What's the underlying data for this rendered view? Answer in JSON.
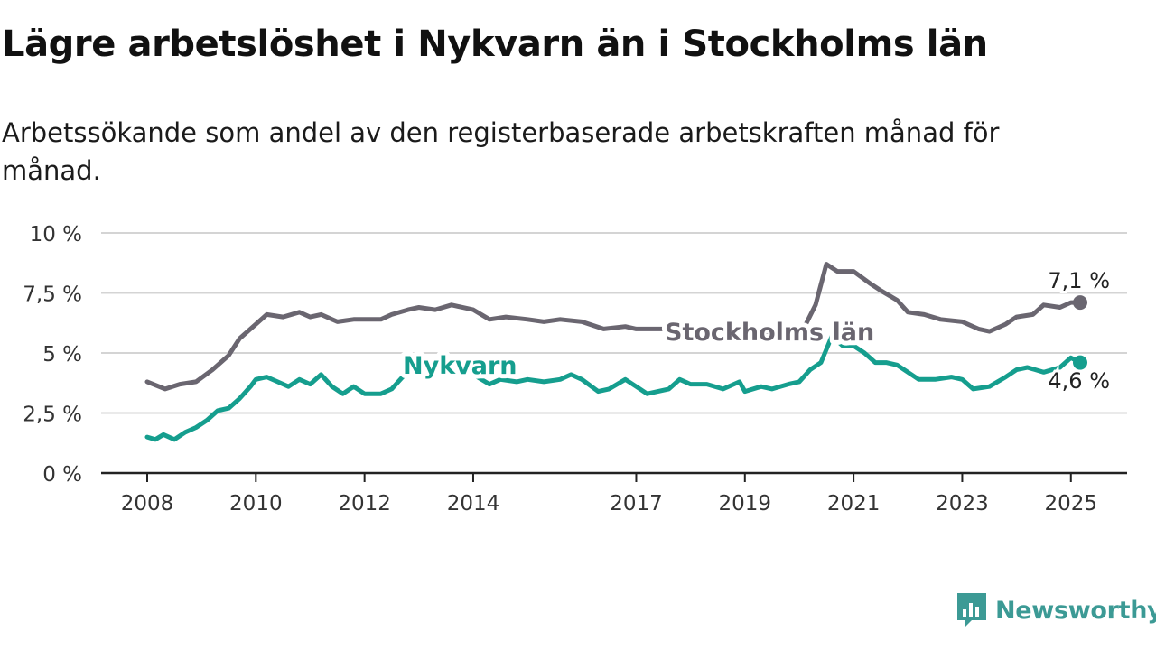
{
  "title": "Lägre arbetslöshet i Nykvarn än i Stockholms län",
  "subtitle": "Arbetssökande som andel av den registerbaserade arbetskraften månad för månad.",
  "brand": "Newsworthy",
  "colors": {
    "stockholm": "#6a6670",
    "nykvarn": "#159e8e",
    "grid": "#d4d4d4",
    "axis": "#222222",
    "brand": "#3c9a95"
  },
  "chart_data": {
    "type": "line",
    "ylim": [
      0,
      10
    ],
    "y_ticks": [
      0,
      2.5,
      5,
      7.5,
      10
    ],
    "y_tick_labels": [
      "0 %",
      "2,5 %",
      "5 %",
      "7,5 %",
      "10 %"
    ],
    "x_ticks": [
      2008,
      2010,
      2012,
      2014,
      2017,
      2019,
      2021,
      2023,
      2025
    ],
    "x_tick_labels": [
      "2008",
      "2010",
      "2012",
      "2014",
      "2017",
      "2019",
      "2021",
      "2023",
      "2025"
    ],
    "grid": true,
    "series": [
      {
        "name": "Stockholms län",
        "end_label": "7,1 %",
        "points": [
          [
            2008.0,
            3.8
          ],
          [
            2008.33,
            3.5
          ],
          [
            2008.6,
            3.7
          ],
          [
            2008.9,
            3.8
          ],
          [
            2009.2,
            4.3
          ],
          [
            2009.5,
            4.9
          ],
          [
            2009.7,
            5.6
          ],
          [
            2010.0,
            6.2
          ],
          [
            2010.2,
            6.6
          ],
          [
            2010.5,
            6.5
          ],
          [
            2010.8,
            6.7
          ],
          [
            2011.0,
            6.5
          ],
          [
            2011.2,
            6.6
          ],
          [
            2011.5,
            6.3
          ],
          [
            2011.8,
            6.4
          ],
          [
            2012.0,
            6.4
          ],
          [
            2012.3,
            6.4
          ],
          [
            2012.5,
            6.6
          ],
          [
            2012.8,
            6.8
          ],
          [
            2013.0,
            6.9
          ],
          [
            2013.3,
            6.8
          ],
          [
            2013.6,
            7.0
          ],
          [
            2014.0,
            6.8
          ],
          [
            2014.3,
            6.4
          ],
          [
            2014.6,
            6.5
          ],
          [
            2015.0,
            6.4
          ],
          [
            2015.3,
            6.3
          ],
          [
            2015.6,
            6.4
          ],
          [
            2016.0,
            6.3
          ],
          [
            2016.4,
            6.0
          ],
          [
            2016.8,
            6.1
          ],
          [
            2017.0,
            6.0
          ],
          [
            2017.3,
            6.0
          ],
          [
            2017.5,
            6.0
          ],
          [
            2017.8,
            6.1
          ],
          [
            2018.0,
            6.0
          ],
          [
            2018.3,
            6.0
          ],
          [
            2018.6,
            6.0
          ],
          [
            2019.0,
            6.0
          ],
          [
            2019.3,
            5.9
          ],
          [
            2019.6,
            5.9
          ],
          [
            2019.9,
            5.9
          ],
          [
            2020.1,
            6.1
          ],
          [
            2020.3,
            7.0
          ],
          [
            2020.5,
            8.7
          ],
          [
            2020.7,
            8.4
          ],
          [
            2021.0,
            8.4
          ],
          [
            2021.3,
            7.9
          ],
          [
            2021.5,
            7.6
          ],
          [
            2021.8,
            7.2
          ],
          [
            2022.0,
            6.7
          ],
          [
            2022.3,
            6.6
          ],
          [
            2022.6,
            6.4
          ],
          [
            2023.0,
            6.3
          ],
          [
            2023.3,
            6.0
          ],
          [
            2023.5,
            5.9
          ],
          [
            2023.8,
            6.2
          ],
          [
            2024.0,
            6.5
          ],
          [
            2024.3,
            6.6
          ],
          [
            2024.5,
            7.0
          ],
          [
            2024.8,
            6.9
          ],
          [
            2025.0,
            7.1
          ],
          [
            2025.17,
            7.1
          ]
        ]
      },
      {
        "name": "Nykvarn",
        "end_label": "4,6 %",
        "points": [
          [
            2008.0,
            1.5
          ],
          [
            2008.15,
            1.4
          ],
          [
            2008.3,
            1.6
          ],
          [
            2008.5,
            1.4
          ],
          [
            2008.7,
            1.7
          ],
          [
            2008.9,
            1.9
          ],
          [
            2009.1,
            2.2
          ],
          [
            2009.3,
            2.6
          ],
          [
            2009.5,
            2.7
          ],
          [
            2009.7,
            3.1
          ],
          [
            2009.9,
            3.6
          ],
          [
            2010.0,
            3.9
          ],
          [
            2010.2,
            4.0
          ],
          [
            2010.4,
            3.8
          ],
          [
            2010.6,
            3.6
          ],
          [
            2010.8,
            3.9
          ],
          [
            2011.0,
            3.7
          ],
          [
            2011.2,
            4.1
          ],
          [
            2011.4,
            3.6
          ],
          [
            2011.6,
            3.3
          ],
          [
            2011.8,
            3.6
          ],
          [
            2012.0,
            3.3
          ],
          [
            2012.3,
            3.3
          ],
          [
            2012.5,
            3.5
          ],
          [
            2012.7,
            4.0
          ],
          [
            2012.9,
            4.3
          ],
          [
            2013.2,
            4.5
          ],
          [
            2013.5,
            4.4
          ],
          [
            2013.8,
            4.3
          ],
          [
            2014.0,
            4.1
          ],
          [
            2014.3,
            3.7
          ],
          [
            2014.5,
            3.9
          ],
          [
            2014.8,
            3.8
          ],
          [
            2015.0,
            3.9
          ],
          [
            2015.3,
            3.8
          ],
          [
            2015.6,
            3.9
          ],
          [
            2015.8,
            4.1
          ],
          [
            2016.0,
            3.9
          ],
          [
            2016.3,
            3.4
          ],
          [
            2016.5,
            3.5
          ],
          [
            2016.8,
            3.9
          ],
          [
            2017.0,
            3.6
          ],
          [
            2017.2,
            3.3
          ],
          [
            2017.4,
            3.4
          ],
          [
            2017.6,
            3.5
          ],
          [
            2017.8,
            3.9
          ],
          [
            2018.0,
            3.7
          ],
          [
            2018.3,
            3.7
          ],
          [
            2018.6,
            3.5
          ],
          [
            2018.9,
            3.8
          ],
          [
            2019.0,
            3.4
          ],
          [
            2019.3,
            3.6
          ],
          [
            2019.5,
            3.5
          ],
          [
            2019.8,
            3.7
          ],
          [
            2020.0,
            3.8
          ],
          [
            2020.2,
            4.3
          ],
          [
            2020.4,
            4.6
          ],
          [
            2020.6,
            5.7
          ],
          [
            2020.8,
            5.3
          ],
          [
            2021.0,
            5.3
          ],
          [
            2021.2,
            5.0
          ],
          [
            2021.4,
            4.6
          ],
          [
            2021.6,
            4.6
          ],
          [
            2021.8,
            4.5
          ],
          [
            2022.0,
            4.2
          ],
          [
            2022.2,
            3.9
          ],
          [
            2022.5,
            3.9
          ],
          [
            2022.8,
            4.0
          ],
          [
            2023.0,
            3.9
          ],
          [
            2023.2,
            3.5
          ],
          [
            2023.5,
            3.6
          ],
          [
            2023.8,
            4.0
          ],
          [
            2024.0,
            4.3
          ],
          [
            2024.2,
            4.4
          ],
          [
            2024.5,
            4.2
          ],
          [
            2024.8,
            4.4
          ],
          [
            2025.0,
            4.8
          ],
          [
            2025.17,
            4.6
          ]
        ]
      }
    ]
  }
}
